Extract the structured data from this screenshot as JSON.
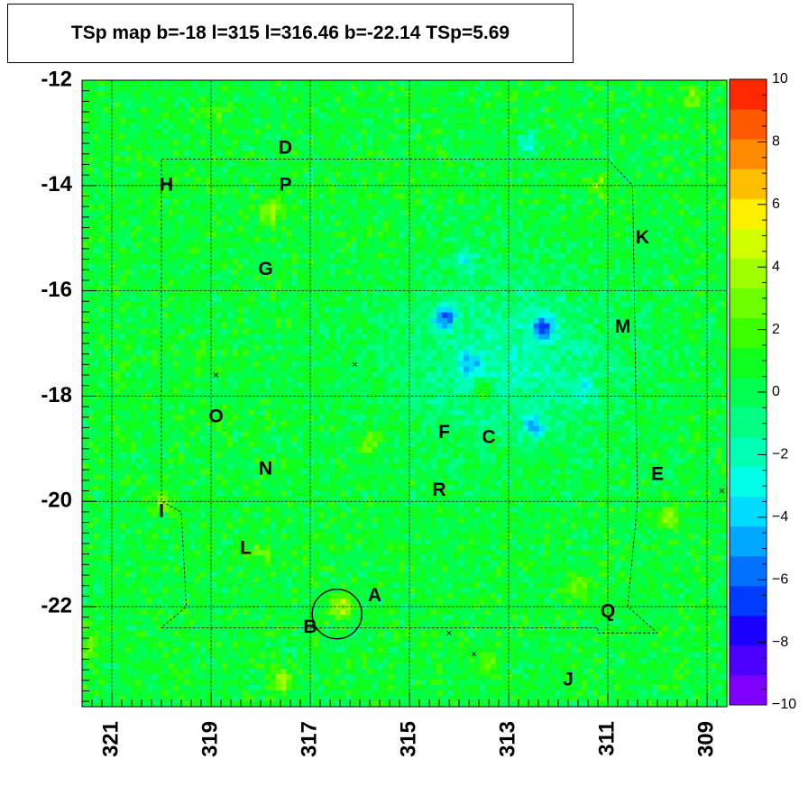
{
  "chart_data": {
    "type": "heatmap",
    "title": "TSp map b=-18 l=315 l=316.46 b=-22.14 TSp=5.69",
    "xlabel": "",
    "ylabel": "",
    "xlim": [
      321.6,
      308.6
    ],
    "ylim": [
      -23.9,
      -12.0
    ],
    "x_reversed": true,
    "grid": true,
    "x_ticks": [
      "321",
      "319",
      "317",
      "315",
      "313",
      "311",
      "309"
    ],
    "x_tick_values": [
      321,
      319,
      317,
      315,
      313,
      311,
      309
    ],
    "y_ticks": [
      "-12",
      "-14",
      "-16",
      "-18",
      "-20",
      "-22"
    ],
    "y_tick_values": [
      -12,
      -14,
      -16,
      -18,
      -20,
      -22
    ],
    "colorbar": {
      "range": [
        -10,
        10
      ],
      "ticks": [
        "10",
        "8",
        "6",
        "4",
        "2",
        "0",
        "−2",
        "−4",
        "−6",
        "−8",
        "−10"
      ],
      "tick_values": [
        10,
        8,
        6,
        4,
        2,
        0,
        -2,
        -4,
        -6,
        -8,
        -10
      ],
      "colors": [
        "#7f00ff",
        "#4c00ff",
        "#1a00ff",
        "#003cff",
        "#0072ff",
        "#00a8ff",
        "#00dcff",
        "#00ffe6",
        "#00ffb4",
        "#00ff82",
        "#00ff50",
        "#0fff1e",
        "#3cff00",
        "#6eff00",
        "#a0ff00",
        "#d2ff00",
        "#fff000",
        "#ffbe00",
        "#ff8c00",
        "#ff5a00",
        "#ff2800"
      ]
    },
    "background_value": 0.5,
    "hotspots": [
      {
        "l": 316.4,
        "b": -22.0,
        "ts": 4.5
      },
      {
        "l": 317.8,
        "b": -14.5,
        "ts": 4.0
      },
      {
        "l": 321.5,
        "b": -22.8,
        "ts": 3.5
      },
      {
        "l": 317.6,
        "b": -23.4,
        "ts": 3.8
      },
      {
        "l": 309.8,
        "b": -20.3,
        "ts": 3.5
      },
      {
        "l": 320.0,
        "b": -20.0,
        "ts": 3.0
      },
      {
        "l": 311.2,
        "b": -14.0,
        "ts": 3.0
      },
      {
        "l": 315.8,
        "b": -18.9,
        "ts": 3.0
      },
      {
        "l": 313.5,
        "b": -17.9,
        "ts": 3.0
      },
      {
        "l": 311.6,
        "b": -21.7,
        "ts": 3.0
      },
      {
        "l": 309.3,
        "b": -12.3,
        "ts": 3.0
      },
      {
        "l": 319.0,
        "b": -12.6,
        "ts": 2.5
      },
      {
        "l": 313.4,
        "b": -23.1,
        "ts": 2.5
      },
      {
        "l": 318.0,
        "b": -21.0,
        "ts": 2.5
      }
    ],
    "coldspots": [
      {
        "l": 314.3,
        "b": -16.5,
        "ts": -5.5
      },
      {
        "l": 312.3,
        "b": -16.7,
        "ts": -5.5
      },
      {
        "l": 312.5,
        "b": -18.6,
        "ts": -3.5
      },
      {
        "l": 313.8,
        "b": -17.4,
        "ts": -3.0
      },
      {
        "l": 312.6,
        "b": -13.2,
        "ts": -2.5
      },
      {
        "l": 313.9,
        "b": -15.4,
        "ts": -2.0
      },
      {
        "l": 311.5,
        "b": -17.9,
        "ts": -2.0
      }
    ],
    "labels": [
      {
        "text": "D",
        "l": 317.5,
        "b": -13.3
      },
      {
        "text": "P",
        "l": 317.5,
        "b": -14.0
      },
      {
        "text": "H",
        "l": 319.9,
        "b": -14.0
      },
      {
        "text": "K",
        "l": 310.3,
        "b": -15.0
      },
      {
        "text": "G",
        "l": 317.9,
        "b": -15.6
      },
      {
        "text": "M",
        "l": 310.7,
        "b": -16.7
      },
      {
        "text": "O",
        "l": 318.9,
        "b": -18.4
      },
      {
        "text": "F",
        "l": 314.3,
        "b": -18.7
      },
      {
        "text": "C",
        "l": 313.4,
        "b": -18.8
      },
      {
        "text": "N",
        "l": 317.9,
        "b": -19.4
      },
      {
        "text": "E",
        "l": 310.0,
        "b": -19.5
      },
      {
        "text": "R",
        "l": 314.4,
        "b": -19.8
      },
      {
        "text": "I",
        "l": 320.0,
        "b": -20.2
      },
      {
        "text": "L",
        "l": 318.3,
        "b": -20.9
      },
      {
        "text": "A",
        "l": 315.7,
        "b": -21.8
      },
      {
        "text": "B",
        "l": 317.0,
        "b": -22.4
      },
      {
        "text": "Q",
        "l": 311.0,
        "b": -22.1
      },
      {
        "text": "J",
        "l": 311.8,
        "b": -23.4
      }
    ],
    "cross_markers": [
      {
        "l": 318.9,
        "b": -17.6
      },
      {
        "l": 316.1,
        "b": -17.4
      },
      {
        "l": 314.2,
        "b": -22.5
      },
      {
        "l": 313.7,
        "b": -22.9
      },
      {
        "l": 308.7,
        "b": -19.8
      }
    ],
    "circle": {
      "l": 316.46,
      "b": -22.14,
      "radius_deg": 0.5
    },
    "grid_lines_l": [
      321,
      319,
      317,
      315,
      313,
      311,
      309
    ],
    "grid_lines_b": [
      -12,
      -14,
      -16,
      -18,
      -20,
      -22
    ],
    "region_outline": [
      [
        320.0,
        -13.5
      ],
      [
        311.0,
        -13.5
      ],
      [
        310.5,
        -14.0
      ],
      [
        310.4,
        -20.0
      ],
      [
        310.6,
        -22.0
      ],
      [
        310.0,
        -22.5
      ],
      [
        311.2,
        -22.5
      ],
      [
        311.2,
        -22.4
      ],
      [
        319.4,
        -22.4
      ],
      [
        320.0,
        -22.4
      ],
      [
        319.5,
        -22.0
      ],
      [
        319.6,
        -20.2
      ],
      [
        320.0,
        -20.0
      ],
      [
        320.0,
        -13.5
      ]
    ]
  }
}
